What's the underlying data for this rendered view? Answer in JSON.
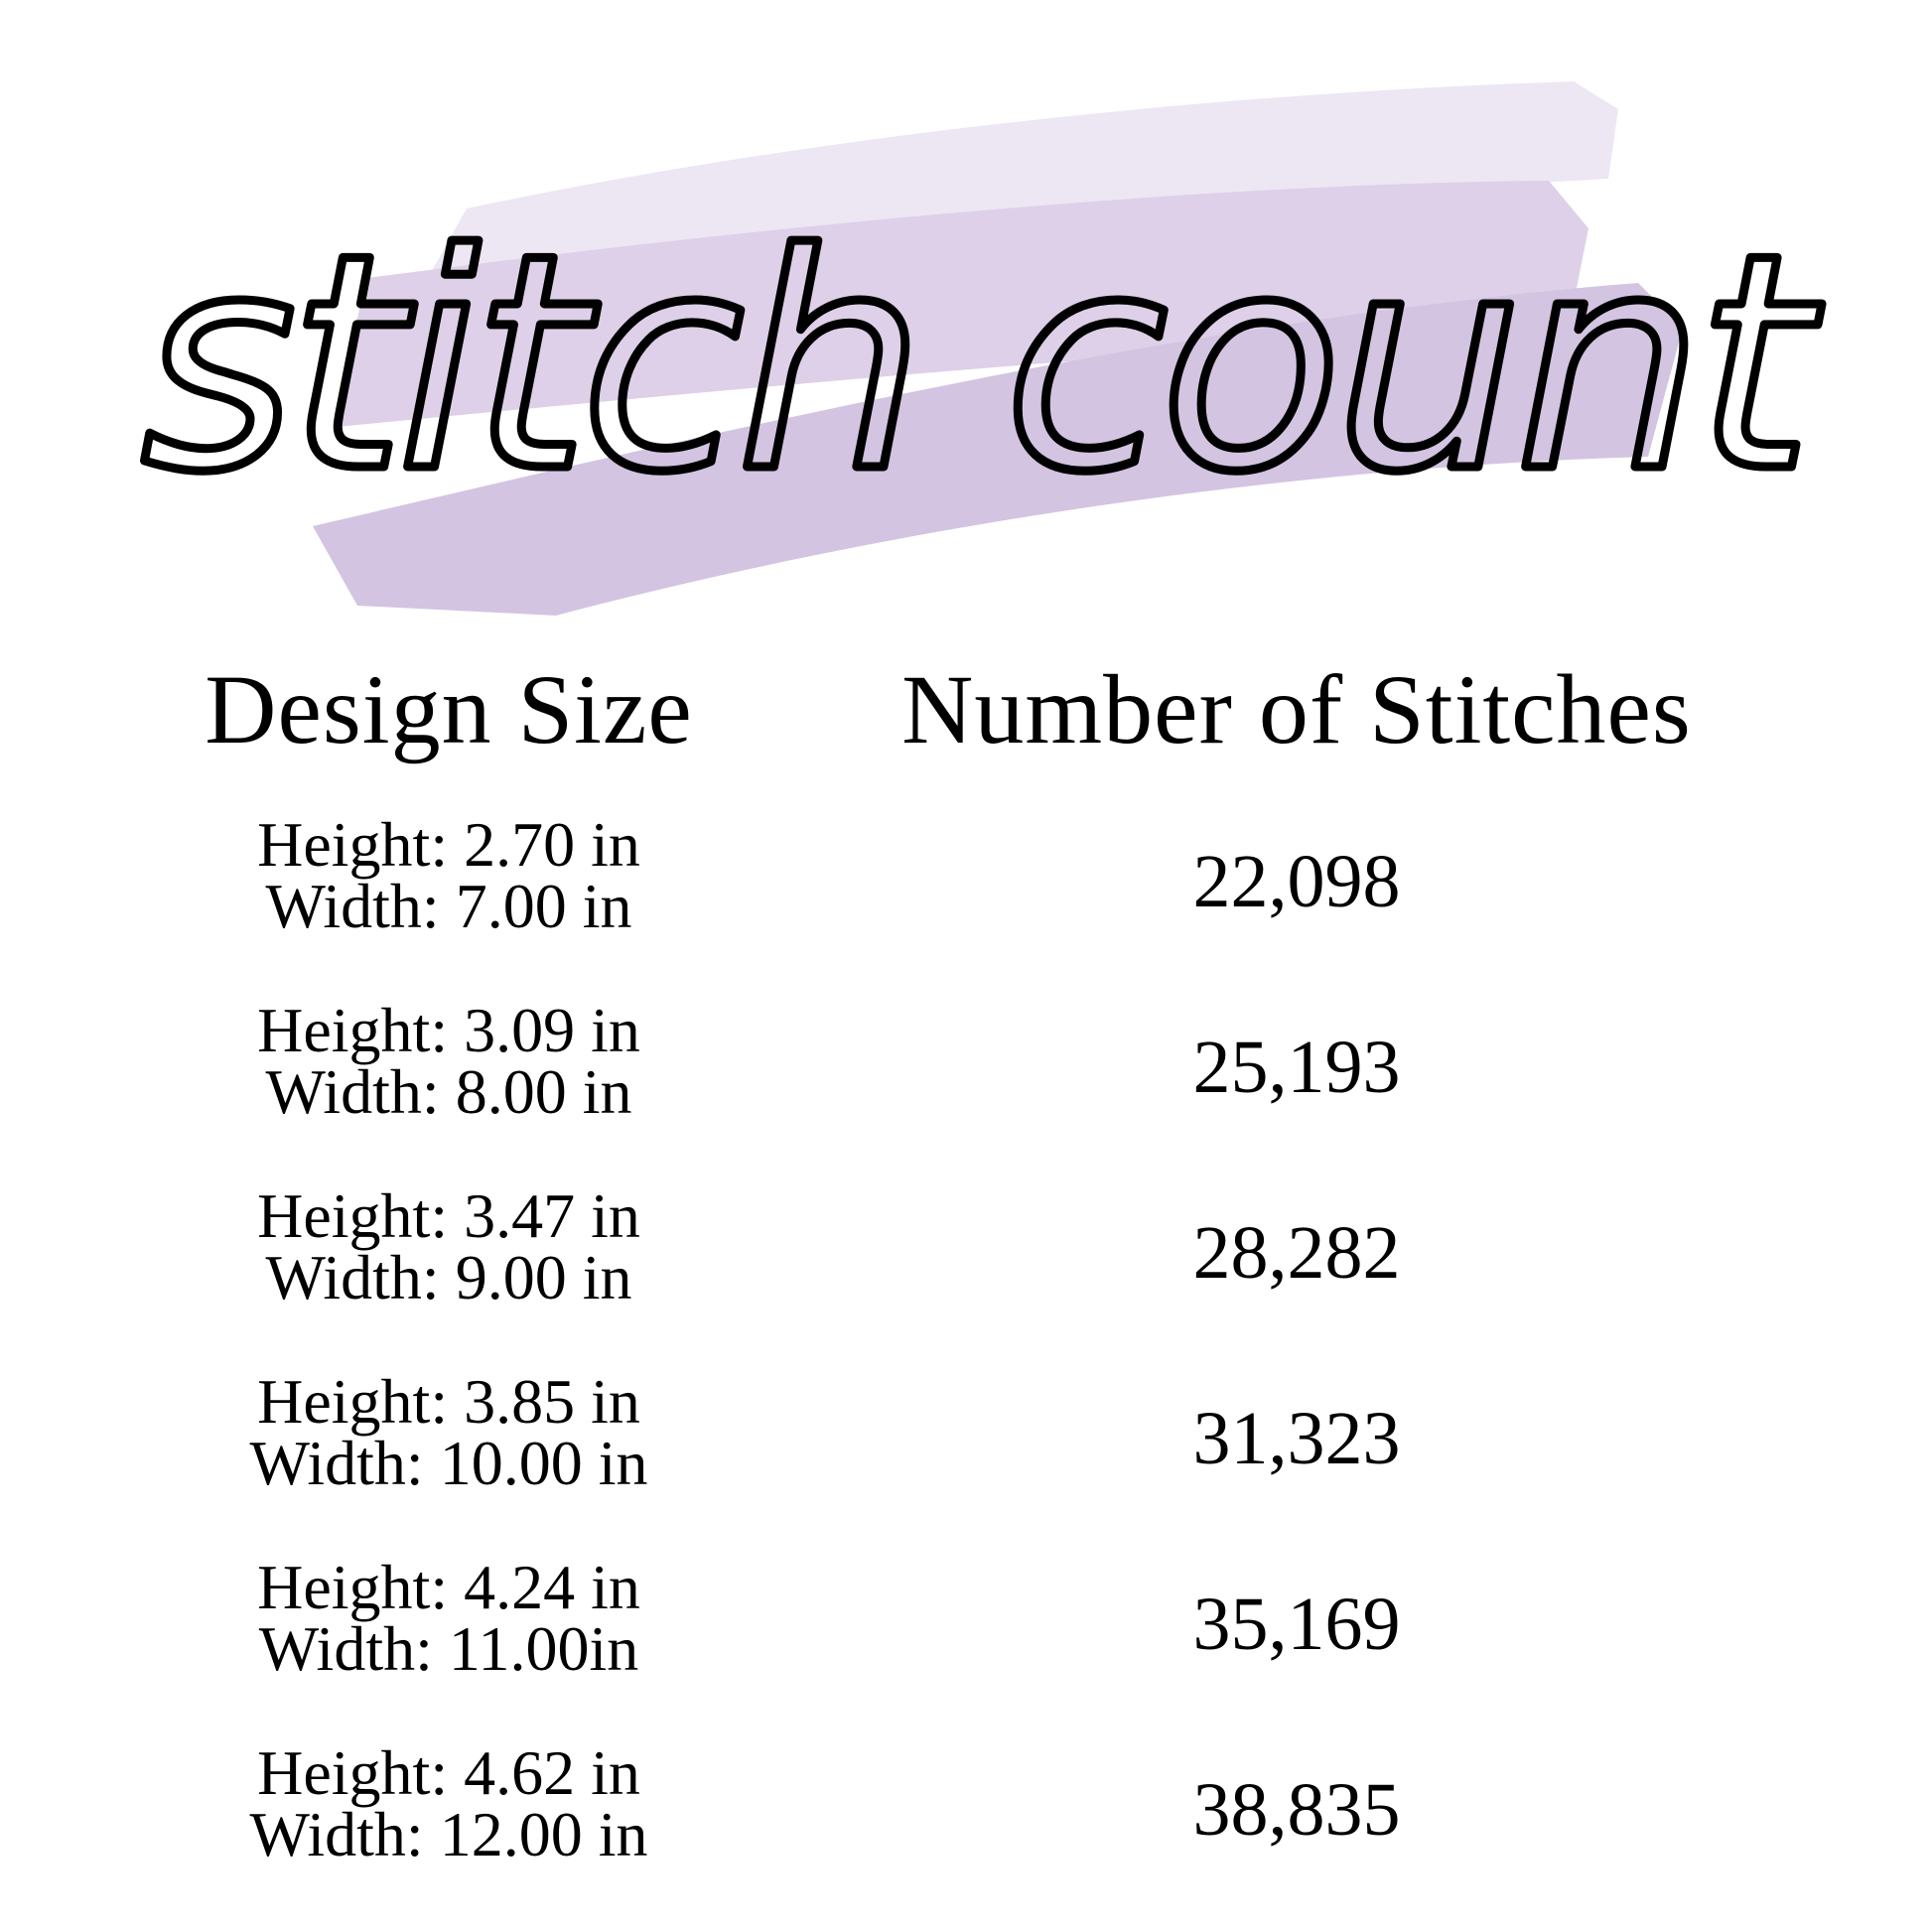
{
  "title": "stitch count",
  "colors": {
    "brush_light": "#ebe4f1",
    "brush_mid": "#d9cbe6",
    "brush_dark": "#cbb9dd",
    "text": "#000000"
  },
  "table": {
    "headers": [
      "Design Size",
      "Number of Stitches"
    ],
    "rows": [
      {
        "height": "Height: 2.70 in",
        "width": "Width: 7.00 in",
        "stitches": "22,098"
      },
      {
        "height": "Height: 3.09 in",
        "width": "Width: 8.00 in",
        "stitches": "25,193"
      },
      {
        "height": "Height: 3.47 in",
        "width": "Width: 9.00 in",
        "stitches": "28,282"
      },
      {
        "height": "Height: 3.85 in",
        "width": "Width: 10.00 in",
        "stitches": "31,323"
      },
      {
        "height": "Height: 4.24 in",
        "width": "Width: 11.00in",
        "stitches": "35,169"
      },
      {
        "height": "Height: 4.62 in",
        "width": "Width: 12.00 in",
        "stitches": "38,835"
      }
    ]
  }
}
